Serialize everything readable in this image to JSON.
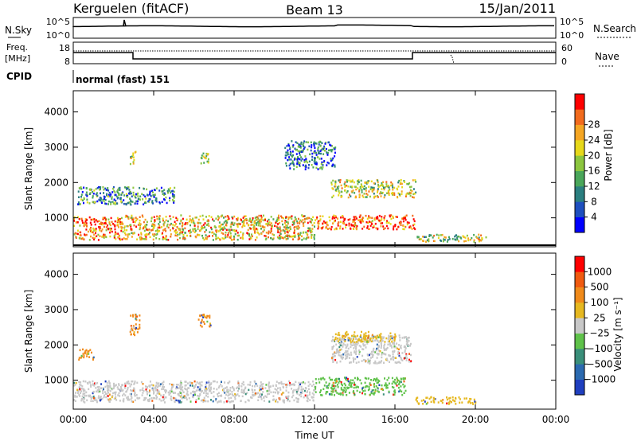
{
  "header": {
    "station": "Kerguelen (fitACF)",
    "beam": "Beam 13",
    "date": "15/Jan/2011"
  },
  "panels": {
    "nsky": {
      "label": "N.Sky",
      "right_label": "N.Search",
      "left_ticks": [
        "10^5",
        "10^0"
      ],
      "right_ticks": [
        "10^5",
        "10^0"
      ]
    },
    "freq": {
      "label_line1": "Freq.",
      "label_line2": "[MHz]",
      "right_label": "Nave",
      "left_ticks": [
        "18",
        "8"
      ],
      "right_ticks": [
        "60",
        "0"
      ]
    },
    "cpid": {
      "label": "CPID",
      "value": "normal (fast) 151"
    }
  },
  "chart_data": [
    {
      "type": "heatmap",
      "title": "",
      "xlabel": "Time UT",
      "ylabel": "Slant Range [km]",
      "x_ticks": [
        "00:00",
        "04:00",
        "08:00",
        "12:00",
        "16:00",
        "20:00",
        "00:00"
      ],
      "xlim_hours": [
        0,
        24
      ],
      "y_ticks": [
        1000,
        2000,
        3000,
        4000
      ],
      "ylim": [
        180,
        4600
      ],
      "colorbar": {
        "label": "Power [dB]",
        "ticks": [
          "4",
          "8",
          "12",
          "16",
          "20",
          "24",
          "28"
        ],
        "colors": [
          "#0000ff",
          "#1e4fbf",
          "#2b7f80",
          "#4aa65a",
          "#8cc63f",
          "#e6d81a",
          "#f5a623",
          "#f26b1d",
          "#ff0000"
        ]
      },
      "echo_regions": [
        {
          "t0": 0.0,
          "t1": 2.5,
          "r0": 400,
          "r1": 1050,
          "level": 0.8
        },
        {
          "t0": 2.5,
          "t1": 12.0,
          "r0": 400,
          "r1": 1100,
          "level": 0.65
        },
        {
          "t0": 12.0,
          "t1": 17.0,
          "r0": 700,
          "r1": 1100,
          "level": 0.85
        },
        {
          "t0": 17.0,
          "t1": 20.5,
          "r0": 350,
          "r1": 550,
          "level": 0.5
        },
        {
          "t0": 12.8,
          "t1": 17.0,
          "r0": 1600,
          "r1": 2100,
          "level": 0.55
        },
        {
          "t0": 0.2,
          "t1": 5.0,
          "r0": 1400,
          "r1": 1900,
          "level": 0.3
        },
        {
          "t0": 2.8,
          "t1": 3.1,
          "r0": 2500,
          "r1": 2900,
          "level": 0.5
        },
        {
          "t0": 6.3,
          "t1": 6.7,
          "r0": 2500,
          "r1": 2900,
          "level": 0.5
        },
        {
          "t0": 10.5,
          "t1": 13.0,
          "r0": 2400,
          "r1": 3200,
          "level": 0.25
        }
      ]
    },
    {
      "type": "heatmap",
      "title": "",
      "xlabel": "Time UT",
      "ylabel": "Slant Range [km]",
      "x_ticks": [
        "00:00",
        "04:00",
        "08:00",
        "12:00",
        "16:00",
        "20:00",
        "00:00"
      ],
      "xlim_hours": [
        0,
        24
      ],
      "y_ticks": [
        1000,
        2000,
        3000,
        4000
      ],
      "ylim": [
        180,
        4600
      ],
      "colorbar": {
        "label": "Velocity [m s⁻¹]",
        "ticks": [
          "1000",
          "500",
          "100",
          "25",
          "−25",
          "−100",
          "−500",
          "−1000"
        ],
        "colors": [
          "#1f3fbf",
          "#2b6ab0",
          "#3a8f7a",
          "#5fc24a",
          "#c8c8c8",
          "#e6b820",
          "#f08a1a",
          "#f05a10",
          "#ff0000"
        ]
      },
      "echo_regions": [
        {
          "t0": 0.0,
          "t1": 12.0,
          "r0": 400,
          "r1": 1000,
          "color": "#c8c8c8"
        },
        {
          "t0": 12.0,
          "t1": 16.5,
          "r0": 600,
          "r1": 1100,
          "color": "#5fc24a"
        },
        {
          "t0": 12.8,
          "t1": 16.8,
          "r0": 1500,
          "r1": 2300,
          "color": "#c8c8c8"
        },
        {
          "t0": 0.2,
          "t1": 1.0,
          "r0": 1600,
          "r1": 1900,
          "color": "#f08a1a"
        },
        {
          "t0": 2.8,
          "t1": 3.3,
          "r0": 2300,
          "r1": 2900,
          "color": "#f08a1a"
        },
        {
          "t0": 6.2,
          "t1": 6.8,
          "r0": 2500,
          "r1": 2900,
          "color": "#f08a1a"
        },
        {
          "t0": 13.0,
          "t1": 16.0,
          "r0": 2100,
          "r1": 2400,
          "color": "#e6b820"
        },
        {
          "t0": 17.0,
          "t1": 20.0,
          "r0": 350,
          "r1": 550,
          "color": "#e6b820"
        }
      ]
    }
  ]
}
